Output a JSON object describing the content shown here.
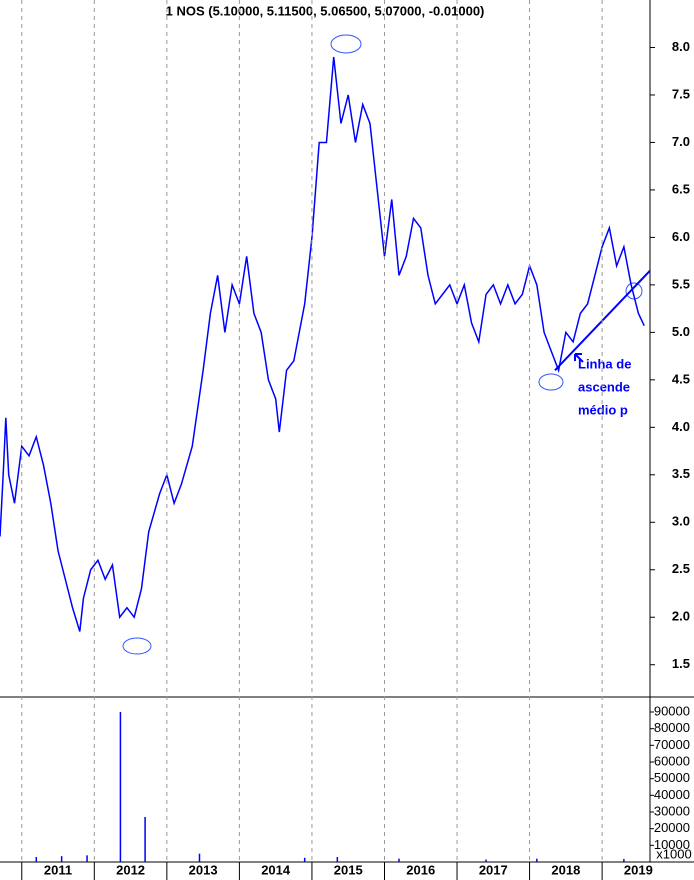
{
  "chart_data": [
    {
      "type": "line",
      "title": "1 NOS (5.10000, 5.11500, 5.06500, 5.07000, -0.01000)",
      "xlim": [
        2010.7,
        2019.66
      ],
      "ylim": [
        1.16,
        8.5
      ],
      "yticks": [
        {
          "value": 8,
          "label": "8.0"
        },
        7.5,
        {
          "value": 7,
          "label": "7.0"
        },
        6.5,
        {
          "value": 6,
          "label": "6.0"
        },
        5.5,
        {
          "value": 5,
          "label": "5.0"
        },
        4.5,
        {
          "value": 4,
          "label": "4.0"
        },
        3.5,
        {
          "value": 3,
          "label": "3.0"
        },
        2.5,
        {
          "value": 2,
          "label": "2.0"
        },
        1.5
      ],
      "x": [
        2010.7,
        2010.75,
        2010.78,
        2010.82,
        2010.9,
        2011.0,
        2011.1,
        2011.2,
        2011.3,
        2011.4,
        2011.5,
        2011.6,
        2011.7,
        2011.8,
        2011.85,
        2011.95,
        2012.05,
        2012.15,
        2012.25,
        2012.35,
        2012.45,
        2012.55,
        2012.65,
        2012.75,
        2012.9,
        2013.0,
        2013.1,
        2013.2,
        2013.35,
        2013.5,
        2013.6,
        2013.7,
        2013.8,
        2013.9,
        2014.0,
        2014.1,
        2014.2,
        2014.3,
        2014.4,
        2014.5,
        2014.55,
        2014.65,
        2014.75,
        2014.9,
        2015.0,
        2015.1,
        2015.2,
        2015.3,
        2015.4,
        2015.5,
        2015.6,
        2015.7,
        2015.8,
        2015.9,
        2016.0,
        2016.1,
        2016.2,
        2016.3,
        2016.4,
        2016.5,
        2016.6,
        2016.7,
        2016.8,
        2016.9,
        2017.0,
        2017.1,
        2017.2,
        2017.3,
        2017.4,
        2017.5,
        2017.6,
        2017.7,
        2017.8,
        2017.9,
        2018.0,
        2018.1,
        2018.2,
        2018.3,
        2018.4,
        2018.5,
        2018.6,
        2018.7,
        2018.8,
        2018.9,
        2019.0,
        2019.1,
        2019.2,
        2019.3,
        2019.4,
        2019.5,
        2019.58
      ],
      "series": [
        {
          "name": "NOS",
          "color": "#0000ff",
          "values": [
            2.85,
            3.6,
            4.1,
            3.5,
            3.2,
            3.8,
            3.7,
            3.9,
            3.6,
            3.2,
            2.7,
            2.4,
            2.1,
            1.85,
            2.2,
            2.5,
            2.6,
            2.4,
            2.55,
            2.0,
            2.1,
            2.0,
            2.3,
            2.9,
            3.3,
            3.5,
            3.2,
            3.4,
            3.8,
            4.6,
            5.2,
            5.6,
            5.0,
            5.5,
            5.3,
            5.8,
            5.2,
            5.0,
            4.5,
            4.3,
            3.95,
            4.6,
            4.7,
            5.3,
            6.0,
            7.0,
            7.0,
            7.9,
            7.2,
            7.5,
            7.0,
            7.4,
            7.2,
            6.5,
            5.8,
            6.4,
            5.6,
            5.8,
            6.2,
            6.1,
            5.6,
            5.3,
            5.4,
            5.5,
            5.3,
            5.5,
            5.1,
            4.9,
            5.4,
            5.5,
            5.3,
            5.5,
            5.3,
            5.4,
            5.7,
            5.5,
            5.0,
            4.8,
            4.6,
            5.0,
            4.9,
            5.2,
            5.3,
            5.6,
            5.9,
            6.1,
            5.7,
            5.9,
            5.5,
            5.2,
            5.07
          ]
        }
      ],
      "trend_line": {
        "x": [
          2018.35,
          2019.66
        ],
        "y": [
          4.6,
          5.65
        ],
        "color": "#0000ff"
      },
      "annotations": [
        "Linha de",
        "ascende",
        "médio p"
      ]
    },
    {
      "type": "bar",
      "xlim": [
        2010.7,
        2019.66
      ],
      "ylim": [
        0,
        99000
      ],
      "yticks": [
        90000,
        80000,
        70000,
        60000,
        50000,
        40000,
        30000,
        20000,
        10000
      ],
      "unit_label": "x1000",
      "xticks": [
        2011,
        2012,
        2013,
        2014,
        2015,
        2016,
        2017,
        2018,
        2019
      ],
      "x": [
        2011.2,
        2011.55,
        2011.9,
        2012.36,
        2012.7,
        2013.45,
        2014.9,
        2015.35,
        2016.2,
        2017.4,
        2018.1,
        2019.3
      ],
      "values": [
        3000,
        3500,
        4000,
        90000,
        27000,
        5000,
        2500,
        3000,
        2000,
        1500,
        2000,
        1800
      ],
      "color": "#0000ff"
    }
  ]
}
